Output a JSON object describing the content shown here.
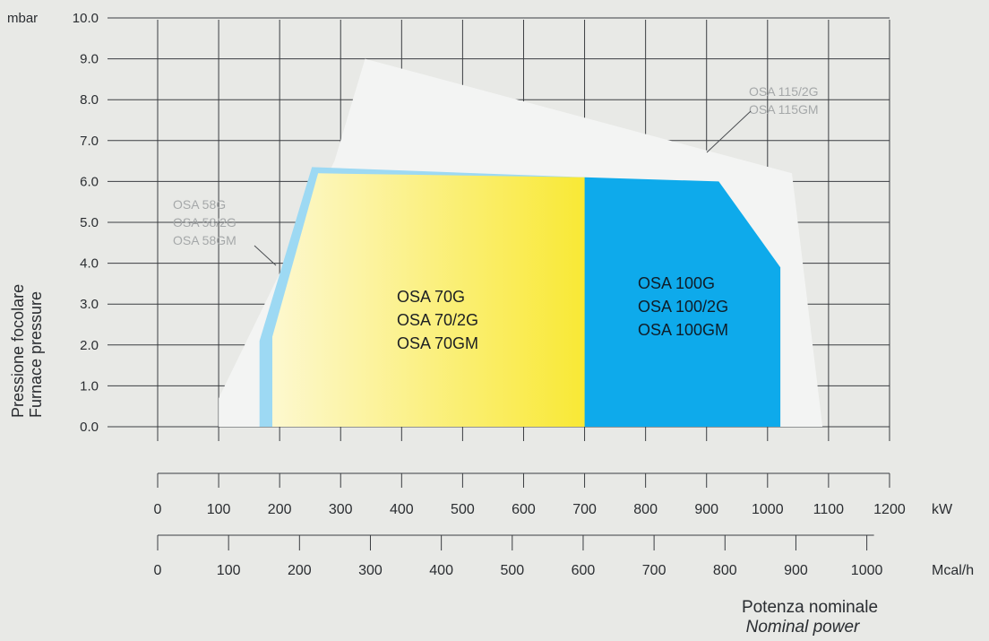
{
  "chart_data": {
    "type": "area",
    "y_unit": "mbar",
    "x_unit_primary": "kW",
    "x_unit_secondary": "Mcal/h",
    "ylabel_lines": [
      "Pressione focolare",
      "Furnace pressure"
    ],
    "xlabel_lines": [
      "Potenza nominale",
      "Nominal power"
    ],
    "y_ticks": [
      "0.0",
      "1.0",
      "2.0",
      "3.0",
      "4.0",
      "5.0",
      "6.0",
      "7.0",
      "8.0",
      "9.0",
      "10.0"
    ],
    "ylim": [
      0,
      10
    ],
    "x_ticks_kw": [
      "0",
      "100",
      "200",
      "300",
      "400",
      "500",
      "600",
      "700",
      "800",
      "900",
      "1000",
      "1100",
      "1200"
    ],
    "xlim_kw": [
      0,
      1200
    ],
    "x_ticks_mcal": [
      "0",
      "100",
      "200",
      "300",
      "400",
      "500",
      "600",
      "700",
      "800",
      "900",
      "1000"
    ],
    "grid": true,
    "series": [
      {
        "name_lines": [
          "OSA 115/2G",
          "OSA 115GM"
        ],
        "color": "#f3f4f3",
        "label_color": "#a5a8a9",
        "points": [
          [
            100,
            0
          ],
          [
            100,
            0.7
          ],
          [
            290,
            6.5
          ],
          [
            340,
            9.0
          ],
          [
            1040,
            6.2
          ],
          [
            1090,
            0
          ]
        ]
      },
      {
        "name_lines": [
          "OSA 58G",
          "OSA 58/2G",
          "OSA 58GM"
        ],
        "color": "#9dd9f3",
        "label_color": "#a5a8a9",
        "points": [
          [
            167,
            0
          ],
          [
            167,
            2.1
          ],
          [
            253,
            6.35
          ],
          [
            700,
            6.1
          ],
          [
            700,
            0
          ]
        ]
      },
      {
        "name_lines": [
          "OSA 70G",
          "OSA 70/2G",
          "OSA 70GM"
        ],
        "color": "#fbee6c",
        "gradient": [
          "#fdf8cf",
          "#f8e61b"
        ],
        "label_color": "#1c1f23",
        "points": [
          [
            188,
            0
          ],
          [
            188,
            2.2
          ],
          [
            263,
            6.2
          ],
          [
            700,
            6.1
          ],
          [
            786,
            1.1
          ],
          [
            786,
            0
          ]
        ]
      },
      {
        "name_lines": [
          "OSA 100G",
          "OSA 100/2G",
          "OSA 100GM"
        ],
        "color": "#0eaaeb",
        "label_color": "#0f1d28",
        "points": [
          [
            700,
            0
          ],
          [
            700,
            6.1
          ],
          [
            920,
            6.0
          ],
          [
            1021,
            3.9
          ],
          [
            1021,
            0
          ]
        ]
      }
    ]
  }
}
